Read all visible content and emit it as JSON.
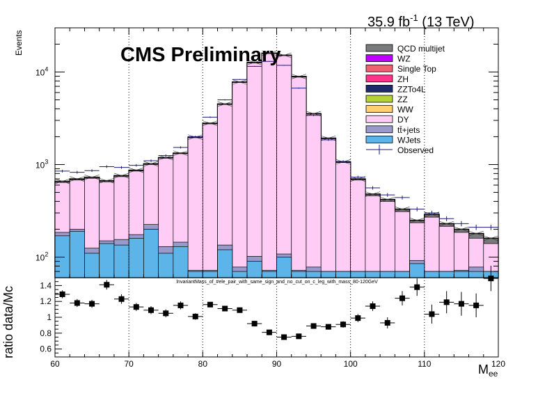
{
  "header": {
    "lumi_text": "35.9 fb",
    "lumi_sup": "-1",
    "energy_text": " (13 TeV)",
    "cms_label": "CMS Preliminary",
    "ratio_title": "InvariantMass_of_#ele_pair_with_same_sign_and_no_cut_on_c_leg_with_mass_80-120GeV"
  },
  "colors": {
    "QCD multijet": "#7a7a7a",
    "WZ": "#c000ff",
    "Single Top": "#f06070",
    "ZH": "#ff3388",
    "ZZTo4L": "#1e2a6e",
    "ZZ": "#b5d335",
    "WW": "#ffd070",
    "DY": "#ffccf6",
    "tt+jets": "#9999cc",
    "WJets": "#5cb4e8"
  },
  "chart_data": [
    {
      "type": "bar",
      "panel": "main",
      "ylabel": "Events",
      "xlabel": "",
      "xlim": [
        60,
        120
      ],
      "ylim_log": [
        60,
        30000
      ],
      "log_y": true,
      "y_ticks": [
        "10^2",
        "10^3",
        "10^4"
      ],
      "bin_width": 2,
      "bin_centers": [
        61,
        63,
        65,
        67,
        69,
        71,
        73,
        75,
        77,
        79,
        81,
        83,
        85,
        87,
        89,
        91,
        93,
        95,
        97,
        99,
        101,
        103,
        105,
        107,
        109,
        111,
        113,
        115,
        117,
        119
      ],
      "legend": [
        {
          "name": "QCD multijet",
          "type": "box"
        },
        {
          "name": "WZ",
          "type": "box"
        },
        {
          "name": "Single Top",
          "type": "box"
        },
        {
          "name": "ZH",
          "type": "box"
        },
        {
          "name": "ZZTo4L",
          "type": "box"
        },
        {
          "name": "ZZ",
          "type": "box"
        },
        {
          "name": "WW",
          "type": "box"
        },
        {
          "name": "DY",
          "type": "box"
        },
        {
          "name": "tt̄+jets",
          "type": "box"
        },
        {
          "name": "WJets",
          "type": "box"
        },
        {
          "name": "Observed",
          "type": "marker"
        }
      ],
      "series": [
        {
          "name": "WJets",
          "stack_top": [
            170,
            190,
            110,
            140,
            135,
            160,
            200,
            110,
            130,
            70,
            70,
            120,
            70,
            90,
            70,
            100,
            70,
            70,
            70,
            70,
            70,
            70,
            70,
            70,
            85,
            70,
            70,
            70,
            70,
            70
          ]
        },
        {
          "name": "tt+jets",
          "stack_top": [
            185,
            200,
            125,
            150,
            155,
            175,
            225,
            130,
            145,
            72,
            72,
            135,
            78,
            102,
            72,
            108,
            72,
            78,
            70,
            70,
            70,
            70,
            70,
            70,
            92,
            70,
            70,
            72,
            78,
            70
          ]
        },
        {
          "name": "DY",
          "stack_top": [
            640,
            680,
            710,
            650,
            740,
            850,
            1000,
            1170,
            1310,
            1950,
            2750,
            4450,
            7700,
            12500,
            15800,
            15000,
            8800,
            3500,
            1900,
            1050,
            680,
            460,
            400,
            310,
            235,
            270,
            215,
            185,
            160,
            140
          ]
        },
        {
          "name": "QCD multijet",
          "stack_top": [
            660,
            700,
            730,
            670,
            760,
            870,
            1020,
            1190,
            1330,
            1980,
            2800,
            4520,
            7800,
            12700,
            16000,
            15200,
            8950,
            3550,
            1930,
            1070,
            700,
            480,
            420,
            330,
            250,
            290,
            230,
            200,
            180,
            160
          ]
        }
      ],
      "observed": {
        "name": "Observed",
        "values": [
          850,
          825,
          860,
          950,
          930,
          980,
          1100,
          1250,
          1530,
          2000,
          3250,
          5000,
          8300,
          11500,
          13000,
          11800,
          6700,
          3400,
          1850,
          1080,
          730,
          560,
          470,
          440,
          330,
          300,
          260,
          230,
          210,
          210
        ],
        "errors": [
          29,
          29,
          29,
          31,
          30,
          31,
          33,
          35,
          39,
          45,
          57,
          71,
          91,
          107,
          114,
          109,
          82,
          58,
          43,
          33,
          27,
          24,
          22,
          21,
          18,
          17,
          16,
          15,
          14,
          14
        ]
      },
      "mc_uncertainty_rel": 0.06
    },
    {
      "type": "scatter",
      "panel": "ratio",
      "ylabel": "ratio data/Mc",
      "xlabel": "M",
      "xlabel_sub": "ee",
      "xlim": [
        60,
        120
      ],
      "ylim": [
        0.5,
        1.5
      ],
      "x_ticks": [
        "60",
        "70",
        "80",
        "90",
        "100",
        "110",
        "120"
      ],
      "y_ticks": [
        "0.6",
        "0.8",
        "1",
        "1.2",
        "1.4"
      ],
      "x": [
        61,
        63,
        65,
        67,
        69,
        71,
        73,
        75,
        77,
        79,
        81,
        83,
        85,
        87,
        89,
        91,
        93,
        95,
        97,
        99,
        101,
        103,
        105,
        107,
        109,
        111,
        113,
        115,
        117,
        119
      ],
      "y": [
        1.29,
        1.18,
        1.17,
        1.41,
        1.23,
        1.13,
        1.09,
        1.05,
        1.15,
        1.01,
        1.16,
        1.11,
        1.09,
        0.92,
        0.81,
        0.75,
        0.76,
        0.89,
        0.88,
        0.91,
        0.99,
        1.14,
        0.93,
        1.24,
        1.38,
        1.04,
        1.19,
        1.17,
        1.15,
        1.49
      ],
      "y_err": [
        0.05,
        0.05,
        0.05,
        0.06,
        0.06,
        0.05,
        0.05,
        0.05,
        0.05,
        0.04,
        0.03,
        0.03,
        0.02,
        0.02,
        0.01,
        0.01,
        0.01,
        0.02,
        0.03,
        0.04,
        0.05,
        0.06,
        0.07,
        0.09,
        0.11,
        0.12,
        0.14,
        0.15,
        0.15,
        0.16
      ]
    }
  ]
}
